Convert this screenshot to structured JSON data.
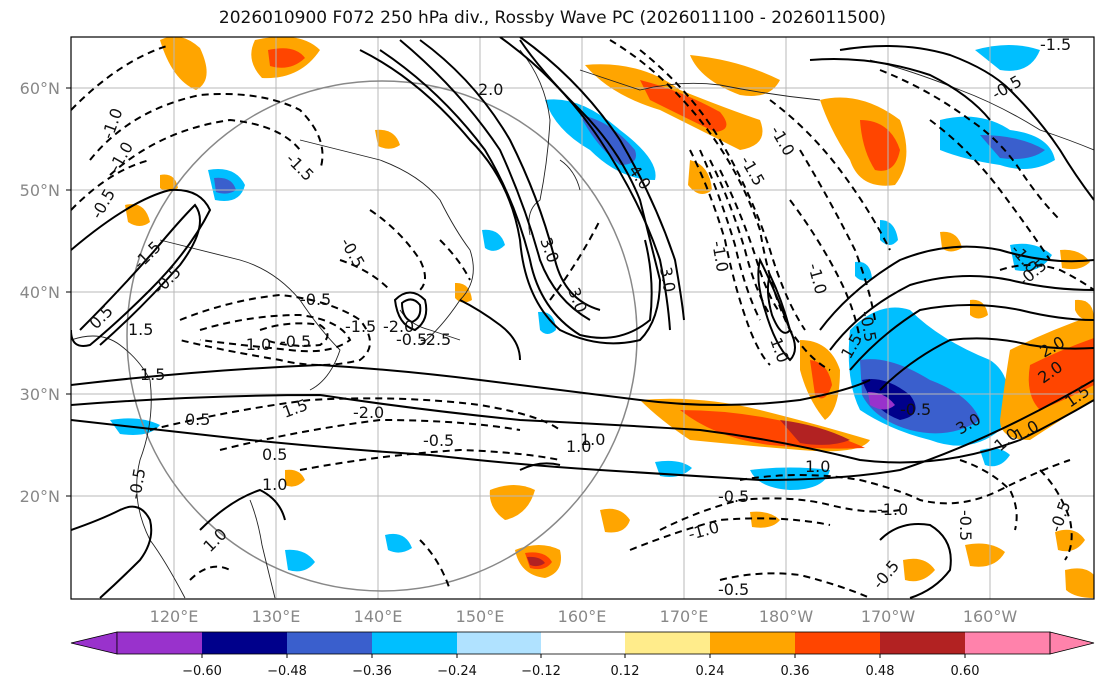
{
  "title": "2026010900 F072 250 hPa div., Rossby Wave PC (2026011100 - 2026011500)",
  "map": {
    "lat_labels": [
      "60°N",
      "50°N",
      "40°N",
      "30°N",
      "20°N"
    ],
    "lon_labels": [
      "120°E",
      "130°E",
      "140°E",
      "150°E",
      "160°E",
      "170°E",
      "180°W",
      "170°W",
      "160°W"
    ],
    "contour_labels": [
      "-1.0",
      "-1.5",
      "1.5",
      "-0.5",
      "0.5",
      "-2.0",
      "-0.5",
      "1.0",
      "1.0",
      "-1.0",
      "0.5",
      "-0.5",
      "1.0",
      "-0.5",
      "-1.0",
      "-1.0",
      "-0.5",
      "1.5",
      "1.0",
      "1.0",
      "-0.5",
      "-0.5",
      "1.0",
      "2.0",
      "1.5",
      "-1.0",
      "-1.0",
      "-0.5",
      "-1.5",
      "3.0",
      "-1.0",
      "-0.5",
      "-0.5",
      "1.0",
      "-0.5",
      "-0.5",
      "-1.5",
      "-1.0",
      "3.0",
      "0.5",
      "-1.5",
      "-0.5",
      "-0.5",
      "1.5",
      "-1.0",
      "-0.5",
      "-1.5",
      "-2.0",
      "-2.5",
      "-0.5",
      "2.0",
      "1.0",
      "-0.5",
      "3.0",
      "4.0",
      "3.0",
      "2.0",
      "1.5"
    ]
  },
  "colorbar": {
    "tick_labels": [
      "−0.60",
      "−0.48",
      "−0.36",
      "−0.24",
      "−0.12",
      "0.12",
      "0.24",
      "0.36",
      "0.48",
      "0.60"
    ],
    "colors": [
      "#9932cc",
      "#00008b",
      "#3a5fcd",
      "#00bfff",
      "#b0e2ff",
      "#ffffff",
      "#ffec8b",
      "#ffa500",
      "#ff4500",
      "#b22222",
      "#ff82ab"
    ]
  }
}
